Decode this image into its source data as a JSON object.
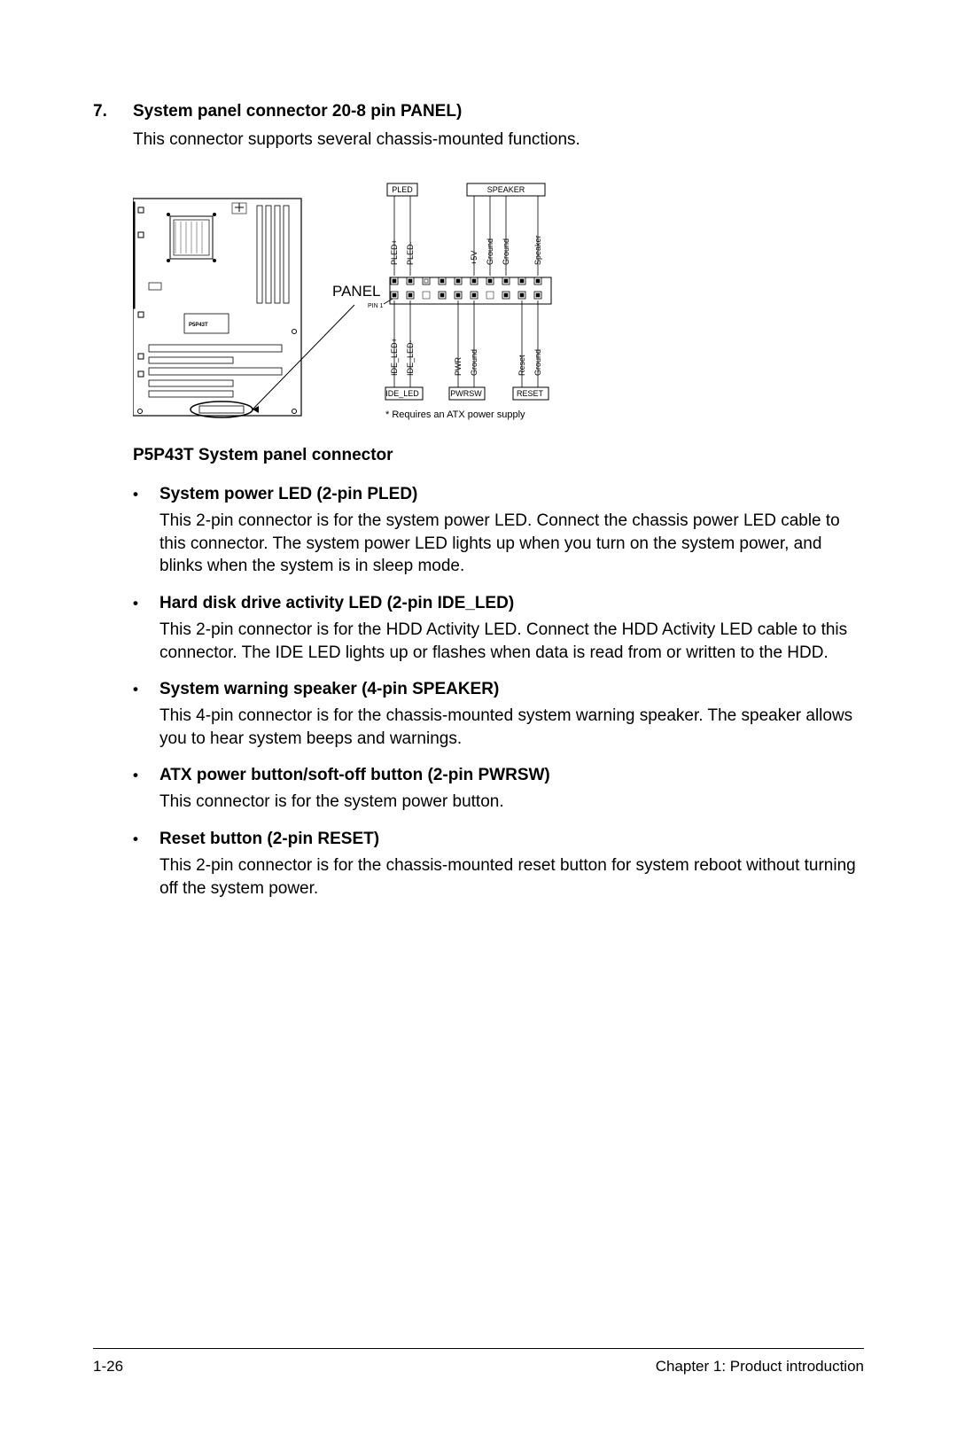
{
  "section": {
    "number": "7.",
    "title": "System panel connector 20-8 pin PANEL)",
    "intro": "This connector supports several chassis-mounted functions."
  },
  "diagram": {
    "caption": "P5P43T System panel connector",
    "panel_label": "PANEL",
    "pin1_label": "PIN 1",
    "footnote": "* Requires an ATX power supply",
    "mobo_label": "P5P43T",
    "top_boxes": [
      "PLED",
      "SPEAKER"
    ],
    "bottom_boxes": [
      "IDE_LED",
      "PWRSW",
      "RESET"
    ],
    "top_pins": [
      "PLED+",
      "PLED-",
      "",
      "+5V",
      "Ground",
      "Ground",
      "Speaker"
    ],
    "bottom_pins": [
      "IDE_LED+",
      "IDE_LED-",
      "",
      "PWR",
      "Ground",
      "",
      "Reset",
      "Ground"
    ],
    "line_color": "#000000",
    "box_fill": "#ffffff",
    "pin_fill": "#000000",
    "pin_inner": "#ffffff",
    "font_small": 9,
    "font_med": 11,
    "font_panel": 17
  },
  "bullets": [
    {
      "title": "System power LED (2-pin PLED)",
      "desc": "This 2-pin connector is for the system power LED. Connect the chassis power LED cable to this connector. The system power LED lights up when you turn on the system power, and blinks when the system is in sleep mode."
    },
    {
      "title": "Hard disk drive activity LED (2-pin IDE_LED)",
      "desc": "This 2-pin connector is for the HDD Activity LED. Connect the HDD Activity LED cable to this connector. The IDE LED lights up or flashes when data is read from or written to the HDD."
    },
    {
      "title": "System warning speaker (4-pin SPEAKER)",
      "desc": "This 4-pin connector is for the chassis-mounted system warning speaker. The speaker allows you to hear system beeps and warnings."
    },
    {
      "title": "ATX power button/soft-off button (2-pin PWRSW)",
      "desc": "This connector is for the system power button."
    },
    {
      "title": "Reset button (2-pin RESET)",
      "desc": "This 2-pin connector is for the chassis-mounted reset button for system reboot without turning off the system power."
    }
  ],
  "footer": {
    "left": "1-26",
    "right": "Chapter 1: Product introduction"
  }
}
